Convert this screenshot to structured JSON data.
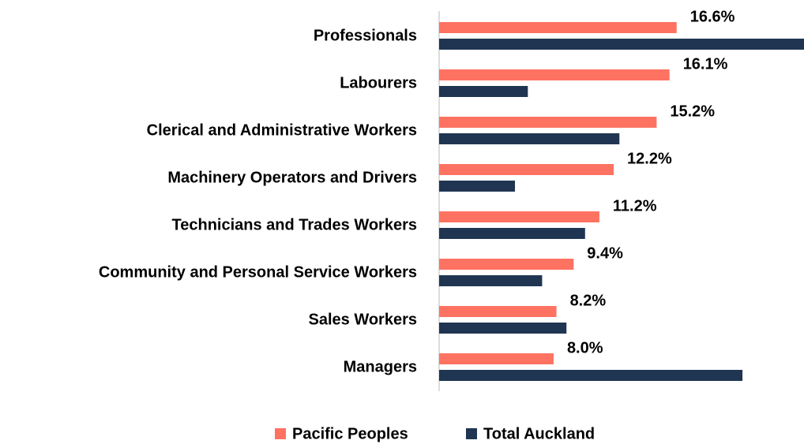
{
  "chart_data": {
    "type": "bar",
    "orientation": "horizontal",
    "categories": [
      "Professionals",
      "Labourers",
      "Clerical and Administrative Workers",
      "Machinery Operators and Drivers",
      "Technicians and Trades Workers",
      "Community and Personal Service Workers",
      "Sales Workers",
      "Managers"
    ],
    "series": [
      {
        "name": "Pacific Peoples",
        "color": "#fe7262",
        "values": [
          16.6,
          16.1,
          15.2,
          12.2,
          11.2,
          9.4,
          8.2,
          8.0
        ],
        "value_labels": [
          "16.6%",
          "16.1%",
          "15.2%",
          "12.2%",
          "11.2%",
          "9.4%",
          "8.2%",
          "8.0%"
        ]
      },
      {
        "name": "Total Auckland",
        "color": "#1f3552",
        "values": [
          25.5,
          6.2,
          12.6,
          5.3,
          10.2,
          7.2,
          8.9,
          21.2
        ]
      }
    ],
    "xlim": [
      0,
      25.5
    ],
    "legend": "bottom"
  }
}
